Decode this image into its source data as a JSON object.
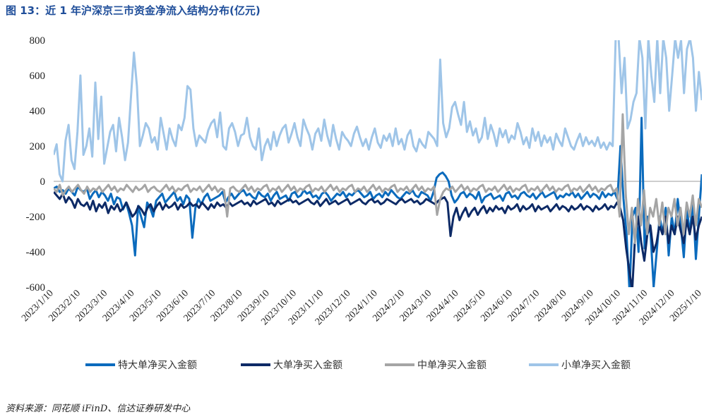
{
  "title": "图 13：近 1 年沪深京三市资金净流入结构分布(亿元)",
  "source": "资料来源：同花顺 iFinD、信达证券研发中心",
  "chart_data": {
    "type": "line",
    "title": "图 13：近 1 年沪深京三市资金净流入结构分布(亿元)",
    "xlabel": "",
    "ylabel": "",
    "ylim": [
      -600,
      800
    ],
    "yticks": [
      800,
      600,
      400,
      200,
      0,
      -200,
      -400,
      -600
    ],
    "x_tick_labels": [
      "2023/1/10",
      "2023/2/10",
      "2023/3/10",
      "2023/4/10",
      "2023/5/10",
      "2023/6/10",
      "2023/7/10",
      "2023/8/10",
      "2023/9/10",
      "2023/10/10",
      "2023/11/10",
      "2023/12/10",
      "2024/1/10",
      "2024/2/10",
      "2024/3/10",
      "2024/4/10",
      "2024/5/10",
      "2024/6/10",
      "2024/7/10",
      "2024/8/10",
      "2024/9/10",
      "2024/10/10",
      "2024/11/10",
      "2024/12/10",
      "2025/1/10"
    ],
    "grid": false,
    "legend_position": "bottom",
    "series": [
      {
        "name": "特大单净买入金额",
        "color": "#0b6bbd",
        "values": [
          -40,
          -30,
          -60,
          -50,
          -70,
          -40,
          -60,
          -80,
          -30,
          -50,
          -60,
          -40,
          -100,
          -70,
          -50,
          -90,
          -60,
          -80,
          -110,
          -70,
          -130,
          -90,
          -100,
          -160,
          -120,
          -180,
          -250,
          -420,
          -140,
          -200,
          -260,
          -120,
          -150,
          -200,
          -110,
          -90,
          -70,
          -120,
          -100,
          -80,
          -60,
          -110,
          -90,
          -130,
          -80,
          -100,
          -320,
          -150,
          -100,
          -130,
          -90,
          -70,
          -110,
          -100,
          -90,
          -80,
          -60,
          -120,
          -90,
          -70,
          -100,
          -80,
          -60,
          -50,
          -80,
          -70,
          -90,
          -100,
          -60,
          -80,
          -90,
          -70,
          -110,
          -80,
          -60,
          -100,
          -90,
          -80,
          -110,
          -70,
          -60,
          -90,
          -80,
          -50,
          -70,
          -60,
          -90,
          -80,
          -100,
          -70,
          -60,
          -80,
          -110,
          -90,
          -70,
          -80,
          -60,
          -90,
          -70,
          -80,
          -60,
          -50,
          -70,
          -90,
          -80,
          -60,
          -100,
          -80,
          -70,
          -90,
          -60,
          -80,
          -50,
          -70,
          -90,
          -100,
          -80,
          -60,
          -70,
          -50,
          -80,
          -90,
          -60,
          -70,
          -80,
          -110,
          -60,
          20,
          40,
          50,
          30,
          0,
          -80,
          -120,
          -100,
          -70,
          -60,
          -90,
          -70,
          -80,
          -100,
          -60,
          -120,
          -90,
          -80,
          -70,
          -100,
          -90,
          -80,
          -110,
          -70,
          -60,
          -90,
          -80,
          -100,
          -70,
          -60,
          -80,
          -90,
          -70,
          -100,
          -80,
          -60,
          -90,
          -80,
          -70,
          -60,
          -100,
          -80,
          -90,
          -70,
          -80,
          -60,
          -90,
          -70,
          -100,
          -80,
          -60,
          -90,
          -70,
          -80,
          -100,
          -60,
          -90,
          -70,
          -80,
          -60,
          -100,
          200,
          -100,
          -300,
          -620,
          -200,
          -150,
          -400,
          360,
          -380,
          -200,
          -300,
          -600,
          -400,
          -200,
          -300,
          -150,
          -420,
          -200,
          -300,
          -100,
          -250,
          -430,
          -150,
          -300,
          -100,
          -440,
          -200,
          40
        ]
      },
      {
        "name": "大单净买入金额",
        "color": "#0d2a66",
        "values": [
          -60,
          -80,
          -100,
          -70,
          -120,
          -90,
          -110,
          -150,
          -100,
          -130,
          -140,
          -120,
          -160,
          -110,
          -170,
          -130,
          -150,
          -120,
          -180,
          -140,
          -160,
          -130,
          -170,
          -150,
          -120,
          -160,
          -200,
          -180,
          -140,
          -160,
          -190,
          -150,
          -130,
          -170,
          -140,
          -120,
          -160,
          -130,
          -150,
          -140,
          -120,
          -160,
          -130,
          -150,
          -140,
          -120,
          -140,
          -130,
          -150,
          -120,
          -140,
          -160,
          -130,
          -150,
          -120,
          -140,
          -130,
          -150,
          -120,
          -140,
          -130,
          -120,
          -110,
          -130,
          -120,
          -140,
          -110,
          -130,
          -120,
          -110,
          -100,
          -130,
          -120,
          -140,
          -110,
          -130,
          -120,
          -110,
          -100,
          -120,
          -110,
          -130,
          -120,
          -110,
          -100,
          -120,
          -130,
          -110,
          -140,
          -120,
          -100,
          -130,
          -120,
          -110,
          -130,
          -120,
          -110,
          -100,
          -130,
          -120,
          -110,
          -100,
          -120,
          -130,
          -110,
          -100,
          -120,
          -110,
          -130,
          -120,
          -100,
          -110,
          -120,
          -130,
          -110,
          -100,
          -120,
          -110,
          -100,
          -120,
          -110,
          -130,
          -120,
          -100,
          -110,
          -120,
          -130,
          -110,
          -100,
          -90,
          -120,
          -310,
          -200,
          -150,
          -220,
          -180,
          -150,
          -200,
          -170,
          -150,
          -190,
          -160,
          -140,
          -180,
          -150,
          -170,
          -140,
          -160,
          -150,
          -180,
          -140,
          -160,
          -150,
          -130,
          -170,
          -140,
          -160,
          -150,
          -130,
          -170,
          -140,
          -160,
          -150,
          -140,
          -170,
          -150,
          -130,
          -160,
          -140,
          -150,
          -170,
          -140,
          -160,
          -150,
          -130,
          -160,
          -140,
          -150,
          -170,
          -140,
          -160,
          -150,
          -130,
          -160,
          -140,
          -150,
          -120,
          -150,
          -220,
          -380,
          -500,
          -620,
          -300,
          -200,
          -350,
          -450,
          -300,
          -250,
          -400,
          -350,
          -250,
          -300,
          -200,
          -350,
          -250,
          -300,
          -200,
          -280,
          -350,
          -220,
          -300,
          -200,
          -330,
          -250,
          -200
        ]
      },
      {
        "name": "中单净买入金额",
        "color": "#a5a5a5",
        "values": [
          -40,
          -60,
          -20,
          -80,
          -50,
          -30,
          -60,
          -40,
          -20,
          -50,
          -70,
          -30,
          -60,
          -40,
          -50,
          -30,
          -60,
          -40,
          -20,
          -50,
          -30,
          -60,
          -40,
          -50,
          -20,
          -40,
          -60,
          -30,
          -50,
          -40,
          -20,
          -60,
          -40,
          -30,
          -50,
          -60,
          -40,
          -20,
          -50,
          -30,
          -60,
          -40,
          -50,
          -30,
          -20,
          -60,
          -40,
          -50,
          -30,
          -60,
          -40,
          -20,
          -50,
          -30,
          -60,
          -40,
          -50,
          -200,
          -40,
          -30,
          -50,
          -60,
          -40,
          -20,
          -50,
          -30,
          -60,
          -40,
          -50,
          -30,
          -20,
          -60,
          -40,
          -50,
          -30,
          -60,
          -40,
          -20,
          -50,
          -30,
          -60,
          -40,
          -50,
          -30,
          -20,
          -60,
          -40,
          -50,
          -30,
          -60,
          -40,
          -20,
          -50,
          -30,
          -60,
          -40,
          -50,
          -30,
          -20,
          -60,
          -40,
          -50,
          -30,
          -60,
          -40,
          -20,
          -50,
          -30,
          -60,
          -40,
          -50,
          -30,
          -20,
          -60,
          -40,
          -50,
          -30,
          -60,
          -40,
          -20,
          -50,
          -30,
          -60,
          -40,
          -50,
          -30,
          -190,
          -100,
          -60,
          -40,
          -50,
          -30,
          -60,
          -40,
          -20,
          -50,
          -30,
          -60,
          -40,
          -50,
          -30,
          -20,
          -60,
          -40,
          -50,
          -30,
          -60,
          -40,
          -20,
          -50,
          -30,
          -60,
          -40,
          -50,
          -30,
          -20,
          -60,
          -40,
          -50,
          -30,
          -60,
          -40,
          -20,
          -50,
          -30,
          -60,
          -40,
          -50,
          -30,
          -20,
          -60,
          -40,
          -50,
          -30,
          -60,
          -40,
          -20,
          -50,
          -30,
          -60,
          -40,
          -50,
          -30,
          -20,
          -60,
          -40,
          -200,
          380,
          -80,
          -300,
          -150,
          -350,
          -100,
          -250,
          -50,
          -300,
          -150,
          -200,
          -100,
          -250,
          -120,
          -300,
          -150,
          -200,
          -100,
          -250,
          -150,
          -300,
          -120,
          -200,
          -80,
          -250,
          -100,
          -150
        ]
      },
      {
        "name": "小单净买入金额",
        "color": "#9fc5e8",
        "values": [
          150,
          210,
          40,
          0,
          230,
          320,
          120,
          70,
          280,
          600,
          150,
          200,
          300,
          140,
          560,
          240,
          480,
          100,
          190,
          280,
          320,
          170,
          360,
          250,
          120,
          220,
          480,
          730,
          540,
          200,
          260,
          330,
          300,
          220,
          250,
          180,
          360,
          270,
          180,
          300,
          240,
          200,
          320,
          290,
          360,
          540,
          520,
          300,
          200,
          260,
          240,
          220,
          290,
          330,
          350,
          250,
          390,
          200,
          180,
          300,
          330,
          280,
          200,
          260,
          270,
          360,
          250,
          200,
          180,
          300,
          120,
          200,
          240,
          180,
          280,
          200,
          260,
          300,
          320,
          220,
          270,
          330,
          250,
          200,
          350,
          300,
          260,
          180,
          270,
          300,
          230,
          350,
          260,
          200,
          320,
          240,
          180,
          280,
          250,
          230,
          200,
          270,
          310,
          250,
          200,
          240,
          180,
          250,
          300,
          220,
          190,
          260,
          230,
          270,
          200,
          300,
          210,
          240,
          180,
          260,
          290,
          200,
          170,
          240,
          210,
          190,
          280,
          260,
          240,
          200,
          690,
          330,
          250,
          300,
          420,
          450,
          380,
          320,
          450,
          280,
          340,
          260,
          300,
          220,
          250,
          360,
          240,
          320,
          270,
          200,
          300,
          250,
          290,
          220,
          260,
          240,
          330,
          280,
          210,
          250,
          190,
          300,
          230,
          280,
          200,
          260,
          220,
          250,
          180,
          270,
          230,
          200,
          300,
          250,
          200,
          180,
          230,
          270,
          200,
          250,
          210,
          230,
          200,
          250,
          190,
          220,
          180,
          220,
          200,
          810,
          810,
          500,
          700,
          300,
          350,
          450,
          500,
          810,
          700,
          300,
          810,
          600,
          450,
          810,
          500,
          810,
          700,
          400,
          600,
          810,
          700,
          800,
          500,
          750,
          810,
          700,
          400,
          620,
          460
        ]
      }
    ]
  },
  "legend": [
    {
      "name": "特大单净买入金额",
      "color": "#0b6bbd"
    },
    {
      "name": "大单净买入金额",
      "color": "#0d2a66"
    },
    {
      "name": "中单净买入金额",
      "color": "#a5a5a5"
    },
    {
      "name": "小单净买入金额",
      "color": "#9fc5e8"
    }
  ]
}
